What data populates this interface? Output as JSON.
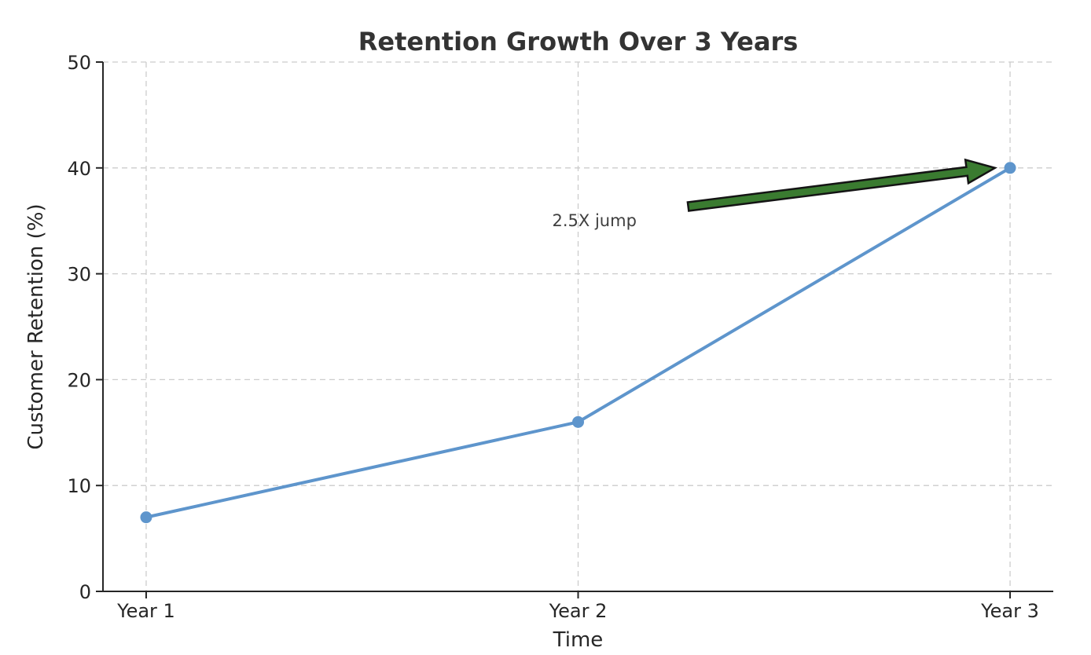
{
  "chart_data": {
    "type": "line",
    "title": "Retention Growth Over 3 Years",
    "xlabel": "Time",
    "ylabel": "Customer Retention (%)",
    "categories": [
      "Year 1",
      "Year 2",
      "Year 3"
    ],
    "series": [
      {
        "name": "Customer Retention (%)",
        "values": [
          7,
          16,
          40
        ]
      }
    ],
    "ylim": [
      0,
      50
    ],
    "yticks": [
      0,
      10,
      20,
      30,
      40,
      50
    ],
    "grid": true,
    "grid_style": "dashed",
    "legend": "none",
    "annotation": {
      "text": "2.5X jump",
      "text_xy": [
        0.94,
        34.5
      ],
      "arrow_tail_xy": [
        1.255,
        36.35
      ],
      "arrow_tip_xy": [
        1.965,
        40.0
      ]
    },
    "colors": {
      "line": "#5e95cc",
      "marker": "#5e95cc",
      "arrow_fill": "#3a7b30",
      "arrow_edge": "#141414",
      "grid": "#cccccc",
      "axis": "#262626",
      "tick_label": "#262626",
      "title": "#333333",
      "annotation_text": "#3f3f3f",
      "background": "#ffffff"
    }
  }
}
